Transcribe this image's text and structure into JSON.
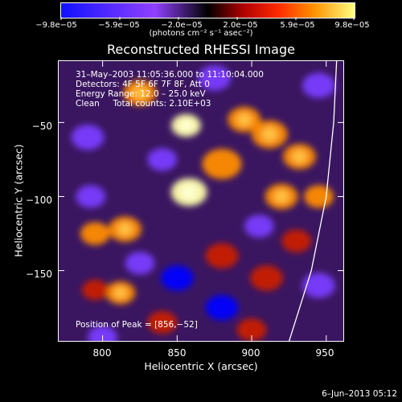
{
  "colorbar": {
    "tick_labels": [
      "−9.8e−05",
      "−5.9e−05",
      "−2.0e−05",
      "2.0e−05",
      "5.9e−05",
      "9.8e−05"
    ],
    "units_label": "(photons cm⁻² s⁻¹ asec⁻²)"
  },
  "title": "Reconstructed RHESSI Image",
  "info": {
    "time_range": "31–May–2003 11:05:36.000 to 11:10:04.000",
    "detectors": "Detectors: 4F 5F 6F 7F 8F, Att 0",
    "energy_range": "Energy Range: 12.0 – 25.0 keV",
    "clean": "Clean     Total counts: 2.10E+03"
  },
  "peak_label": "Position of Peak = [856,−52]",
  "footer_date": "6–Jun–2013 05:12",
  "chart_data": {
    "type": "heatmap",
    "title": "Reconstructed RHESSI Image",
    "xlabel": "Heliocentric X (arcsec)",
    "ylabel": "Heliocentric Y (arcsec)",
    "xlim": [
      770,
      962
    ],
    "ylim": [
      -198,
      -8
    ],
    "x_ticks": [
      800,
      850,
      900,
      950
    ],
    "y_ticks": [
      -50,
      -100,
      -150
    ],
    "x_tick_labels": [
      "800",
      "850",
      "900",
      "950"
    ],
    "y_tick_labels": [
      "−50",
      "−100",
      "−150"
    ],
    "color_range": [
      -9.8e-05,
      9.8e-05
    ],
    "peak_position": [
      856,
      -52
    ],
    "colors": {
      "negative_low": "#0000ff",
      "negative_mid": "#7a3cff",
      "zero": "#000000",
      "positive_mid": "#c81e00",
      "positive_high": "#ff8c00",
      "peak": "#ffffaa"
    },
    "blobs": [
      {
        "x": 856,
        "y": -52,
        "v": 1.0,
        "r": 9
      },
      {
        "x": 858,
        "y": -97,
        "v": 0.95,
        "r": 11
      },
      {
        "x": 825,
        "y": -30,
        "v": 0.85,
        "r": 10
      },
      {
        "x": 880,
        "y": -78,
        "v": 0.7,
        "r": 12
      },
      {
        "x": 895,
        "y": -48,
        "v": 0.75,
        "r": 10
      },
      {
        "x": 912,
        "y": -58,
        "v": 0.85,
        "r": 11
      },
      {
        "x": 932,
        "y": -73,
        "v": 0.8,
        "r": 10
      },
      {
        "x": 920,
        "y": -100,
        "v": 0.75,
        "r": 10
      },
      {
        "x": 945,
        "y": -100,
        "v": 0.65,
        "r": 9
      },
      {
        "x": 815,
        "y": -122,
        "v": 0.8,
        "r": 10
      },
      {
        "x": 795,
        "y": -125,
        "v": 0.6,
        "r": 9
      },
      {
        "x": 812,
        "y": -165,
        "v": 0.85,
        "r": 9
      },
      {
        "x": 795,
        "y": -163,
        "v": 0.55,
        "r": 8
      },
      {
        "x": 880,
        "y": -140,
        "v": 0.45,
        "r": 10
      },
      {
        "x": 910,
        "y": -155,
        "v": 0.5,
        "r": 10
      },
      {
        "x": 930,
        "y": -130,
        "v": 0.55,
        "r": 9
      },
      {
        "x": 900,
        "y": -190,
        "v": 0.45,
        "r": 9
      },
      {
        "x": 840,
        "y": -185,
        "v": 0.4,
        "r": 9
      },
      {
        "x": 790,
        "y": -60,
        "v": -0.7,
        "r": 10
      },
      {
        "x": 792,
        "y": -100,
        "v": -0.6,
        "r": 9
      },
      {
        "x": 840,
        "y": -75,
        "v": -0.55,
        "r": 9
      },
      {
        "x": 850,
        "y": -155,
        "v": -0.9,
        "r": 10
      },
      {
        "x": 825,
        "y": -145,
        "v": -0.7,
        "r": 9
      },
      {
        "x": 880,
        "y": -175,
        "v": -0.8,
        "r": 10
      },
      {
        "x": 905,
        "y": -120,
        "v": -0.6,
        "r": 9
      },
      {
        "x": 945,
        "y": -160,
        "v": -0.6,
        "r": 10
      },
      {
        "x": 945,
        "y": -25,
        "v": -0.6,
        "r": 10
      },
      {
        "x": 875,
        "y": -20,
        "v": -0.5,
        "r": 10
      },
      {
        "x": 800,
        "y": -195,
        "v": -0.5,
        "r": 9
      }
    ],
    "limb_curve_points": [
      [
        925,
        -198
      ],
      [
        940,
        -150
      ],
      [
        950,
        -100
      ],
      [
        955,
        -50
      ],
      [
        957,
        -8
      ]
    ]
  }
}
